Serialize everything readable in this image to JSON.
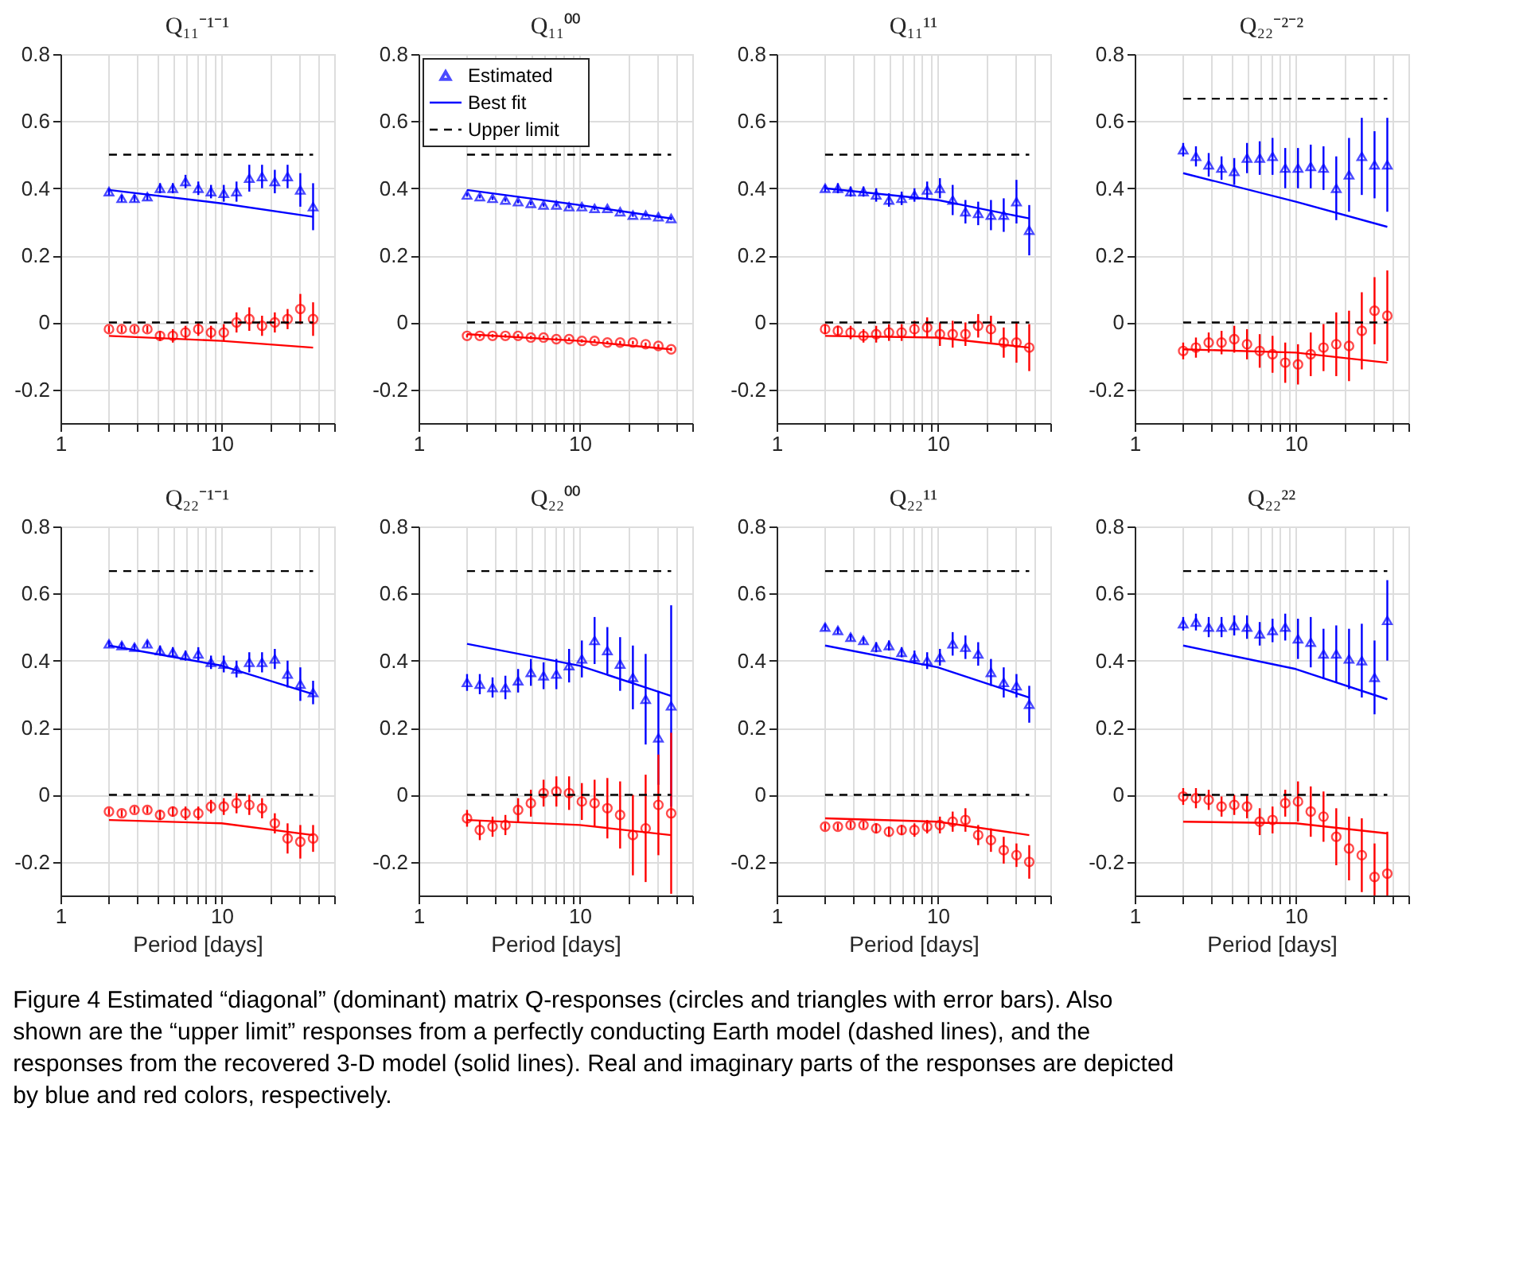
{
  "chart_data": [
    {
      "type": "scatter",
      "title": "Q₁₁⁻¹⁻¹",
      "log": "x",
      "grid": true,
      "legend": false,
      "xlim": [
        1,
        50
      ],
      "ylim": [
        -0.3,
        0.8
      ],
      "xticks": [
        1,
        {
          "value": 2,
          "label": null
        },
        {
          "value": 3,
          "label": null
        },
        {
          "value": 4,
          "label": null
        },
        {
          "value": 5,
          "label": null
        },
        {
          "value": 6,
          "label": null
        },
        {
          "value": 7,
          "label": null
        },
        {
          "value": 8,
          "label": null
        },
        {
          "value": 9,
          "label": null
        },
        10,
        {
          "value": 20,
          "label": null
        },
        {
          "value": 30,
          "label": null
        },
        {
          "value": 40,
          "label": null
        },
        {
          "value": 50,
          "label": null
        }
      ],
      "yticks": [
        -0.2,
        0,
        0.2,
        0.4,
        0.6,
        0.8
      ],
      "x": [
        2,
        2.4,
        2.88,
        3.46,
        4.15,
        4.98,
        5.97,
        7.17,
        8.6,
        10.32,
        12.38,
        14.86,
        17.83,
        21.4,
        25.68,
        30.81,
        36.98
      ],
      "series": [
        {
          "type": "scatter",
          "marker": "triangle",
          "color": "#0000ff",
          "values": [
            0.39,
            0.37,
            0.37,
            0.375,
            0.4,
            0.4,
            0.42,
            0.4,
            0.39,
            0.385,
            0.39,
            0.43,
            0.435,
            0.42,
            0.435,
            0.395,
            0.345
          ],
          "errors": [
            0.01,
            0.01,
            0.01,
            0.01,
            0.015,
            0.015,
            0.02,
            0.02,
            0.02,
            0.025,
            0.03,
            0.04,
            0.035,
            0.035,
            0.035,
            0.05,
            0.07
          ]
        },
        {
          "type": "scatter",
          "marker": "circle",
          "color": "#ff0000",
          "values": [
            -0.02,
            -0.02,
            -0.02,
            -0.02,
            -0.04,
            -0.04,
            -0.03,
            -0.02,
            -0.03,
            -0.03,
            0.0,
            0.01,
            -0.01,
            0.0,
            0.01,
            0.04,
            0.01
          ],
          "errors": [
            0.01,
            0.01,
            0.01,
            0.01,
            0.015,
            0.02,
            0.02,
            0.02,
            0.02,
            0.025,
            0.03,
            0.035,
            0.03,
            0.03,
            0.03,
            0.045,
            0.05
          ]
        },
        {
          "type": "line",
          "color": "#0000ff",
          "x": [
            2,
            10,
            36.98
          ],
          "values": [
            0.395,
            0.355,
            0.315
          ]
        },
        {
          "type": "line",
          "color": "#ff0000",
          "x": [
            2,
            10,
            36.98
          ],
          "values": [
            -0.04,
            -0.055,
            -0.075
          ]
        },
        {
          "type": "line",
          "line_style": "dashed",
          "color": "#000000",
          "x": [
            2,
            36.98
          ],
          "values": [
            0.5,
            0.5
          ]
        },
        {
          "type": "line",
          "line_style": "dashed",
          "color": "#000000",
          "x": [
            2,
            36.98
          ],
          "values": [
            0,
            0
          ]
        }
      ]
    },
    {
      "type": "scatter",
      "title": "Q₁₁⁰⁰",
      "log": "x",
      "grid": true,
      "legend": "top left",
      "xlim": [
        1,
        50
      ],
      "ylim": [
        -0.3,
        0.8
      ],
      "xticks": [
        1,
        {
          "value": 2,
          "label": null
        },
        {
          "value": 3,
          "label": null
        },
        {
          "value": 4,
          "label": null
        },
        {
          "value": 5,
          "label": null
        },
        {
          "value": 6,
          "label": null
        },
        {
          "value": 7,
          "label": null
        },
        {
          "value": 8,
          "label": null
        },
        {
          "value": 9,
          "label": null
        },
        10,
        {
          "value": 20,
          "label": null
        },
        {
          "value": 30,
          "label": null
        },
        {
          "value": 40,
          "label": null
        },
        {
          "value": 50,
          "label": null
        }
      ],
      "yticks": [
        -0.2,
        0,
        0.2,
        0.4,
        0.6,
        0.8
      ],
      "x": [
        2,
        2.4,
        2.88,
        3.46,
        4.15,
        4.98,
        5.97,
        7.17,
        8.6,
        10.32,
        12.38,
        14.86,
        17.83,
        21.4,
        25.68,
        30.81,
        36.98
      ],
      "series": [
        {
          "name": "Estimated",
          "type": "scatter",
          "marker": "triangle",
          "color": "#0000ff",
          "values": [
            0.38,
            0.375,
            0.37,
            0.365,
            0.36,
            0.355,
            0.35,
            0.35,
            0.345,
            0.345,
            0.34,
            0.34,
            0.33,
            0.32,
            0.32,
            0.315,
            0.31
          ],
          "errors": [
            0.005,
            0.005,
            0.005,
            0.005,
            0.005,
            0.005,
            0.005,
            0.005,
            0.005,
            0.005,
            0.005,
            0.005,
            0.005,
            0.005,
            0.005,
            0.005,
            0.005
          ]
        },
        {
          "type": "scatter",
          "marker": "circle",
          "color": "#ff0000",
          "values": [
            -0.04,
            -0.04,
            -0.04,
            -0.04,
            -0.04,
            -0.045,
            -0.045,
            -0.05,
            -0.05,
            -0.055,
            -0.055,
            -0.06,
            -0.06,
            -0.06,
            -0.065,
            -0.07,
            -0.08
          ],
          "errors": [
            0.005,
            0.005,
            0.005,
            0.005,
            0.005,
            0.005,
            0.005,
            0.005,
            0.005,
            0.005,
            0.005,
            0.005,
            0.005,
            0.005,
            0.005,
            0.005,
            0.005
          ]
        },
        {
          "name": "Best fit",
          "type": "line",
          "color": "#0000ff",
          "x": [
            2,
            10,
            36.98
          ],
          "values": [
            0.395,
            0.35,
            0.31
          ]
        },
        {
          "type": "line",
          "color": "#ff0000",
          "x": [
            2,
            10,
            36.98
          ],
          "values": [
            -0.035,
            -0.055,
            -0.08
          ]
        },
        {
          "name": "Upper limit",
          "type": "line",
          "line_style": "dashed",
          "color": "#000000",
          "x": [
            2,
            36.98
          ],
          "values": [
            0.5,
            0.5
          ]
        },
        {
          "type": "line",
          "line_style": "dashed",
          "color": "#000000",
          "x": [
            2,
            36.98
          ],
          "values": [
            0,
            0
          ]
        }
      ]
    },
    {
      "type": "scatter",
      "title": "Q₁₁¹¹",
      "log": "x",
      "grid": true,
      "legend": false,
      "xlim": [
        1,
        50
      ],
      "ylim": [
        -0.3,
        0.8
      ],
      "xticks": [
        1,
        {
          "value": 2,
          "label": null
        },
        {
          "value": 3,
          "label": null
        },
        {
          "value": 4,
          "label": null
        },
        {
          "value": 5,
          "label": null
        },
        {
          "value": 6,
          "label": null
        },
        {
          "value": 7,
          "label": null
        },
        {
          "value": 8,
          "label": null
        },
        {
          "value": 9,
          "label": null
        },
        10,
        {
          "value": 20,
          "label": null
        },
        {
          "value": 30,
          "label": null
        },
        {
          "value": 40,
          "label": null
        },
        {
          "value": 50,
          "label": null
        }
      ],
      "yticks": [
        -0.2,
        0,
        0.2,
        0.4,
        0.6,
        0.8
      ],
      "x": [
        2,
        2.4,
        2.88,
        3.46,
        4.15,
        4.98,
        5.97,
        7.17,
        8.6,
        10.32,
        12.38,
        14.86,
        17.83,
        21.4,
        25.68,
        30.81,
        36.98
      ],
      "series": [
        {
          "type": "scatter",
          "marker": "triangle",
          "color": "#0000ff",
          "values": [
            0.4,
            0.4,
            0.39,
            0.39,
            0.38,
            0.365,
            0.37,
            0.38,
            0.395,
            0.4,
            0.365,
            0.33,
            0.325,
            0.32,
            0.32,
            0.36,
            0.275
          ],
          "errors": [
            0.01,
            0.015,
            0.015,
            0.015,
            0.02,
            0.02,
            0.02,
            0.02,
            0.025,
            0.03,
            0.045,
            0.035,
            0.035,
            0.045,
            0.05,
            0.065,
            0.075
          ]
        },
        {
          "type": "scatter",
          "marker": "circle",
          "color": "#ff0000",
          "values": [
            -0.02,
            -0.025,
            -0.03,
            -0.04,
            -0.035,
            -0.03,
            -0.03,
            -0.02,
            -0.015,
            -0.035,
            -0.035,
            -0.035,
            -0.01,
            -0.02,
            -0.06,
            -0.06,
            -0.075
          ],
          "errors": [
            0.015,
            0.015,
            0.02,
            0.02,
            0.025,
            0.025,
            0.025,
            0.025,
            0.03,
            0.035,
            0.04,
            0.035,
            0.035,
            0.04,
            0.045,
            0.06,
            0.07
          ]
        },
        {
          "type": "line",
          "color": "#0000ff",
          "x": [
            2,
            10,
            36.98
          ],
          "values": [
            0.4,
            0.365,
            0.31
          ]
        },
        {
          "type": "line",
          "color": "#ff0000",
          "x": [
            2,
            10,
            36.98
          ],
          "values": [
            -0.04,
            -0.045,
            -0.075
          ]
        },
        {
          "type": "line",
          "line_style": "dashed",
          "color": "#000000",
          "x": [
            2,
            36.98
          ],
          "values": [
            0.5,
            0.5
          ]
        },
        {
          "type": "line",
          "line_style": "dashed",
          "color": "#000000",
          "x": [
            2,
            36.98
          ],
          "values": [
            0,
            0
          ]
        }
      ]
    },
    {
      "type": "scatter",
      "title": "Q₂₂⁻²⁻²",
      "log": "x",
      "grid": true,
      "legend": false,
      "xlim": [
        1,
        50
      ],
      "ylim": [
        -0.3,
        0.8
      ],
      "xticks": [
        1,
        {
          "value": 2,
          "label": null
        },
        {
          "value": 3,
          "label": null
        },
        {
          "value": 4,
          "label": null
        },
        {
          "value": 5,
          "label": null
        },
        {
          "value": 6,
          "label": null
        },
        {
          "value": 7,
          "label": null
        },
        {
          "value": 8,
          "label": null
        },
        {
          "value": 9,
          "label": null
        },
        10,
        {
          "value": 20,
          "label": null
        },
        {
          "value": 30,
          "label": null
        },
        {
          "value": 40,
          "label": null
        },
        {
          "value": 50,
          "label": null
        }
      ],
      "yticks": [
        -0.2,
        0,
        0.2,
        0.4,
        0.6,
        0.8
      ],
      "x": [
        2,
        2.4,
        2.88,
        3.46,
        4.15,
        4.98,
        5.97,
        7.17,
        8.6,
        10.32,
        12.38,
        14.86,
        17.83,
        21.4,
        25.68,
        30.81,
        36.98
      ],
      "series": [
        {
          "type": "scatter",
          "marker": "triangle",
          "color": "#0000ff",
          "values": [
            0.515,
            0.495,
            0.47,
            0.46,
            0.45,
            0.49,
            0.49,
            0.495,
            0.46,
            0.46,
            0.465,
            0.46,
            0.4,
            0.44,
            0.495,
            0.47,
            0.47
          ],
          "errors": [
            0.02,
            0.03,
            0.035,
            0.035,
            0.04,
            0.045,
            0.05,
            0.055,
            0.06,
            0.06,
            0.065,
            0.065,
            0.095,
            0.11,
            0.115,
            0.1,
            0.14
          ]
        },
        {
          "type": "scatter",
          "marker": "circle",
          "color": "#ff0000",
          "values": [
            -0.085,
            -0.075,
            -0.06,
            -0.06,
            -0.05,
            -0.065,
            -0.085,
            -0.095,
            -0.12,
            -0.125,
            -0.095,
            -0.075,
            -0.065,
            -0.07,
            -0.025,
            0.035,
            0.02
          ],
          "errors": [
            0.025,
            0.03,
            0.03,
            0.035,
            0.04,
            0.045,
            0.05,
            0.055,
            0.06,
            0.06,
            0.065,
            0.07,
            0.095,
            0.105,
            0.115,
            0.1,
            0.135
          ]
        },
        {
          "type": "line",
          "color": "#0000ff",
          "x": [
            2,
            10,
            36.98
          ],
          "values": [
            0.445,
            0.36,
            0.285
          ]
        },
        {
          "type": "line",
          "color": "#ff0000",
          "x": [
            2,
            10,
            36.98
          ],
          "values": [
            -0.08,
            -0.09,
            -0.12
          ]
        },
        {
          "type": "line",
          "line_style": "dashed",
          "color": "#000000",
          "x": [
            2,
            36.98
          ],
          "values": [
            0.667,
            0.667
          ]
        },
        {
          "type": "line",
          "line_style": "dashed",
          "color": "#000000",
          "x": [
            2,
            36.98
          ],
          "values": [
            0,
            0
          ]
        }
      ]
    },
    {
      "type": "scatter",
      "title": "Q₂₂⁻¹⁻¹",
      "xlabel": "Period [days]",
      "log": "x",
      "grid": true,
      "legend": false,
      "xlim": [
        1,
        50
      ],
      "ylim": [
        -0.3,
        0.8
      ],
      "xticks": [
        1,
        {
          "value": 2,
          "label": null
        },
        {
          "value": 3,
          "label": null
        },
        {
          "value": 4,
          "label": null
        },
        {
          "value": 5,
          "label": null
        },
        {
          "value": 6,
          "label": null
        },
        {
          "value": 7,
          "label": null
        },
        {
          "value": 8,
          "label": null
        },
        {
          "value": 9,
          "label": null
        },
        10,
        {
          "value": 20,
          "label": null
        },
        {
          "value": 30,
          "label": null
        },
        {
          "value": 40,
          "label": null
        },
        {
          "value": 50,
          "label": null
        }
      ],
      "yticks": [
        -0.2,
        0,
        0.2,
        0.4,
        0.6,
        0.8
      ],
      "x": [
        2,
        2.4,
        2.88,
        3.46,
        4.15,
        4.98,
        5.97,
        7.17,
        8.6,
        10.32,
        12.38,
        14.86,
        17.83,
        21.4,
        25.68,
        30.81,
        36.98
      ],
      "series": [
        {
          "type": "scatter",
          "marker": "triangle",
          "color": "#0000ff",
          "values": [
            0.45,
            0.445,
            0.44,
            0.45,
            0.43,
            0.425,
            0.415,
            0.42,
            0.395,
            0.39,
            0.375,
            0.395,
            0.395,
            0.405,
            0.36,
            0.33,
            0.305
          ],
          "errors": [
            0.01,
            0.01,
            0.01,
            0.01,
            0.015,
            0.015,
            0.015,
            0.02,
            0.02,
            0.025,
            0.025,
            0.03,
            0.03,
            0.03,
            0.04,
            0.05,
            0.035
          ]
        },
        {
          "type": "scatter",
          "marker": "circle",
          "color": "#ff0000",
          "values": [
            -0.05,
            -0.055,
            -0.045,
            -0.045,
            -0.06,
            -0.05,
            -0.055,
            -0.055,
            -0.035,
            -0.035,
            -0.025,
            -0.03,
            -0.04,
            -0.085,
            -0.13,
            -0.14,
            -0.13
          ],
          "errors": [
            0.01,
            0.01,
            0.01,
            0.01,
            0.015,
            0.015,
            0.02,
            0.02,
            0.02,
            0.025,
            0.03,
            0.03,
            0.03,
            0.03,
            0.045,
            0.05,
            0.04
          ]
        },
        {
          "type": "line",
          "color": "#0000ff",
          "x": [
            2,
            10,
            36.98
          ],
          "values": [
            0.445,
            0.385,
            0.3
          ]
        },
        {
          "type": "line",
          "color": "#ff0000",
          "x": [
            2,
            10,
            36.98
          ],
          "values": [
            -0.075,
            -0.085,
            -0.12
          ]
        },
        {
          "type": "line",
          "line_style": "dashed",
          "color": "#000000",
          "x": [
            2,
            36.98
          ],
          "values": [
            0.667,
            0.667
          ]
        },
        {
          "type": "line",
          "line_style": "dashed",
          "color": "#000000",
          "x": [
            2,
            36.98
          ],
          "values": [
            0,
            0
          ]
        }
      ]
    },
    {
      "type": "scatter",
      "title": "Q₂₂⁰⁰",
      "xlabel": "Period [days]",
      "log": "x",
      "grid": true,
      "legend": false,
      "xlim": [
        1,
        50
      ],
      "ylim": [
        -0.3,
        0.8
      ],
      "xticks": [
        1,
        {
          "value": 2,
          "label": null
        },
        {
          "value": 3,
          "label": null
        },
        {
          "value": 4,
          "label": null
        },
        {
          "value": 5,
          "label": null
        },
        {
          "value": 6,
          "label": null
        },
        {
          "value": 7,
          "label": null
        },
        {
          "value": 8,
          "label": null
        },
        {
          "value": 9,
          "label": null
        },
        10,
        {
          "value": 20,
          "label": null
        },
        {
          "value": 30,
          "label": null
        },
        {
          "value": 40,
          "label": null
        },
        {
          "value": 50,
          "label": null
        }
      ],
      "yticks": [
        -0.2,
        0,
        0.2,
        0.4,
        0.6,
        0.8
      ],
      "x": [
        2,
        2.4,
        2.88,
        3.46,
        4.15,
        4.98,
        5.97,
        7.17,
        8.6,
        10.32,
        12.38,
        14.86,
        17.83,
        21.4,
        25.68,
        30.81,
        36.98
      ],
      "series": [
        {
          "type": "scatter",
          "marker": "triangle",
          "color": "#0000ff",
          "values": [
            0.335,
            0.33,
            0.32,
            0.32,
            0.34,
            0.365,
            0.355,
            0.36,
            0.385,
            0.405,
            0.46,
            0.43,
            0.39,
            0.35,
            0.285,
            0.17,
            0.265
          ],
          "errors": [
            0.025,
            0.03,
            0.03,
            0.035,
            0.035,
            0.04,
            0.04,
            0.045,
            0.05,
            0.055,
            0.07,
            0.07,
            0.08,
            0.095,
            0.135,
            0.14,
            0.3
          ]
        },
        {
          "type": "scatter",
          "marker": "circle",
          "color": "#ff0000",
          "values": [
            -0.07,
            -0.105,
            -0.095,
            -0.09,
            -0.045,
            -0.025,
            0.005,
            0.01,
            0.005,
            -0.02,
            -0.025,
            -0.04,
            -0.06,
            -0.12,
            -0.1,
            -0.03,
            -0.055
          ],
          "errors": [
            0.025,
            0.03,
            0.03,
            0.03,
            0.035,
            0.04,
            0.04,
            0.045,
            0.05,
            0.055,
            0.07,
            0.09,
            0.1,
            0.12,
            0.16,
            0.15,
            0.24
          ]
        },
        {
          "type": "line",
          "color": "#0000ff",
          "x": [
            2,
            10,
            36.98
          ],
          "values": [
            0.45,
            0.385,
            0.295
          ]
        },
        {
          "type": "line",
          "color": "#ff0000",
          "x": [
            2,
            10,
            36.98
          ],
          "values": [
            -0.075,
            -0.09,
            -0.12
          ]
        },
        {
          "type": "line",
          "line_style": "dashed",
          "color": "#000000",
          "x": [
            2,
            36.98
          ],
          "values": [
            0.667,
            0.667
          ]
        },
        {
          "type": "line",
          "line_style": "dashed",
          "color": "#000000",
          "x": [
            2,
            36.98
          ],
          "values": [
            0,
            0
          ]
        }
      ]
    },
    {
      "type": "scatter",
      "title": "Q₂₂¹¹",
      "xlabel": "Period [days]",
      "log": "x",
      "grid": true,
      "legend": false,
      "xlim": [
        1,
        50
      ],
      "ylim": [
        -0.3,
        0.8
      ],
      "xticks": [
        1,
        {
          "value": 2,
          "label": null
        },
        {
          "value": 3,
          "label": null
        },
        {
          "value": 4,
          "label": null
        },
        {
          "value": 5,
          "label": null
        },
        {
          "value": 6,
          "label": null
        },
        {
          "value": 7,
          "label": null
        },
        {
          "value": 8,
          "label": null
        },
        {
          "value": 9,
          "label": null
        },
        10,
        {
          "value": 20,
          "label": null
        },
        {
          "value": 30,
          "label": null
        },
        {
          "value": 40,
          "label": null
        },
        {
          "value": 50,
          "label": null
        }
      ],
      "yticks": [
        -0.2,
        0,
        0.2,
        0.4,
        0.6,
        0.8
      ],
      "x": [
        2,
        2.4,
        2.88,
        3.46,
        4.15,
        4.98,
        5.97,
        7.17,
        8.6,
        10.32,
        12.38,
        14.86,
        17.83,
        21.4,
        25.68,
        30.81,
        36.98
      ],
      "series": [
        {
          "type": "scatter",
          "marker": "triangle",
          "color": "#0000ff",
          "values": [
            0.5,
            0.49,
            0.47,
            0.46,
            0.44,
            0.445,
            0.425,
            0.41,
            0.4,
            0.41,
            0.45,
            0.44,
            0.42,
            0.365,
            0.335,
            0.325,
            0.27
          ],
          "errors": [
            0.01,
            0.01,
            0.01,
            0.01,
            0.015,
            0.015,
            0.015,
            0.02,
            0.025,
            0.025,
            0.035,
            0.035,
            0.035,
            0.04,
            0.045,
            0.035,
            0.055
          ]
        },
        {
          "type": "scatter",
          "marker": "circle",
          "color": "#ff0000",
          "values": [
            -0.095,
            -0.095,
            -0.09,
            -0.09,
            -0.1,
            -0.11,
            -0.105,
            -0.105,
            -0.095,
            -0.09,
            -0.08,
            -0.075,
            -0.12,
            -0.135,
            -0.165,
            -0.18,
            -0.2
          ],
          "errors": [
            0.01,
            0.01,
            0.01,
            0.01,
            0.015,
            0.015,
            0.015,
            0.02,
            0.02,
            0.025,
            0.03,
            0.035,
            0.03,
            0.035,
            0.04,
            0.035,
            0.05
          ]
        },
        {
          "type": "line",
          "color": "#0000ff",
          "x": [
            2,
            10,
            36.98
          ],
          "values": [
            0.445,
            0.38,
            0.29
          ]
        },
        {
          "type": "line",
          "color": "#ff0000",
          "x": [
            2,
            10,
            36.98
          ],
          "values": [
            -0.07,
            -0.08,
            -0.12
          ]
        },
        {
          "type": "line",
          "line_style": "dashed",
          "color": "#000000",
          "x": [
            2,
            36.98
          ],
          "values": [
            0.667,
            0.667
          ]
        },
        {
          "type": "line",
          "line_style": "dashed",
          "color": "#000000",
          "x": [
            2,
            36.98
          ],
          "values": [
            0,
            0
          ]
        }
      ]
    },
    {
      "type": "scatter",
      "title": "Q₂₂²²",
      "xlabel": "Period [days]",
      "log": "x",
      "grid": true,
      "legend": false,
      "xlim": [
        1,
        50
      ],
      "ylim": [
        -0.3,
        0.8
      ],
      "xticks": [
        1,
        {
          "value": 2,
          "label": null
        },
        {
          "value": 3,
          "label": null
        },
        {
          "value": 4,
          "label": null
        },
        {
          "value": 5,
          "label": null
        },
        {
          "value": 6,
          "label": null
        },
        {
          "value": 7,
          "label": null
        },
        {
          "value": 8,
          "label": null
        },
        {
          "value": 9,
          "label": null
        },
        10,
        {
          "value": 20,
          "label": null
        },
        {
          "value": 30,
          "label": null
        },
        {
          "value": 40,
          "label": null
        },
        {
          "value": 50,
          "label": null
        }
      ],
      "yticks": [
        -0.2,
        0,
        0.2,
        0.4,
        0.6,
        0.8
      ],
      "x": [
        2,
        2.4,
        2.88,
        3.46,
        4.15,
        4.98,
        5.97,
        7.17,
        8.6,
        10.32,
        12.38,
        14.86,
        17.83,
        21.4,
        25.68,
        30.81,
        36.98
      ],
      "annotations": [
        "Figure 4 Estimated “diagonal” (dominant) matrix Q-responses (circles and triangles with error bars). Also shown are the “upper limit” responses from a perfectly conducting Earth model (dashed lines), and the responses from the recovered 3-D model (solid lines). Real and imaginary parts of the responses are depicted by blue and red colors, respectively."
      ],
      "series": [
        {
          "type": "scatter",
          "marker": "triangle",
          "color": "#0000ff",
          "values": [
            0.51,
            0.515,
            0.5,
            0.5,
            0.505,
            0.5,
            0.48,
            0.49,
            0.5,
            0.465,
            0.455,
            0.42,
            0.42,
            0.405,
            0.4,
            0.35,
            0.52
          ],
          "errors": [
            0.02,
            0.025,
            0.03,
            0.03,
            0.03,
            0.035,
            0.035,
            0.035,
            0.04,
            0.06,
            0.075,
            0.075,
            0.085,
            0.09,
            0.11,
            0.11,
            0.12
          ]
        },
        {
          "type": "scatter",
          "marker": "circle",
          "color": "#ff0000",
          "values": [
            -0.005,
            -0.01,
            -0.015,
            -0.035,
            -0.03,
            -0.035,
            -0.08,
            -0.075,
            -0.025,
            -0.02,
            -0.05,
            -0.065,
            -0.125,
            -0.16,
            -0.18,
            -0.245,
            -0.235
          ],
          "errors": [
            0.025,
            0.03,
            0.03,
            0.03,
            0.03,
            0.035,
            0.04,
            0.04,
            0.04,
            0.06,
            0.075,
            0.075,
            0.085,
            0.095,
            0.11,
            [
              -0.3,
              -0.145
            ],
            [
              -0.3,
              -0.11
            ]
          ]
        },
        {
          "type": "line",
          "color": "#0000ff",
          "x": [
            2,
            10,
            36.98
          ],
          "values": [
            0.445,
            0.375,
            0.285
          ]
        },
        {
          "type": "line",
          "color": "#ff0000",
          "x": [
            2,
            10,
            36.98
          ],
          "values": [
            -0.08,
            -0.085,
            -0.115
          ]
        },
        {
          "type": "line",
          "line_style": "dashed",
          "color": "#000000",
          "x": [
            2,
            36.98
          ],
          "values": [
            0.667,
            0.667
          ]
        },
        {
          "type": "line",
          "line_style": "dashed",
          "color": "#000000",
          "x": [
            2,
            36.98
          ],
          "values": [
            0,
            0
          ]
        }
      ]
    }
  ]
}
